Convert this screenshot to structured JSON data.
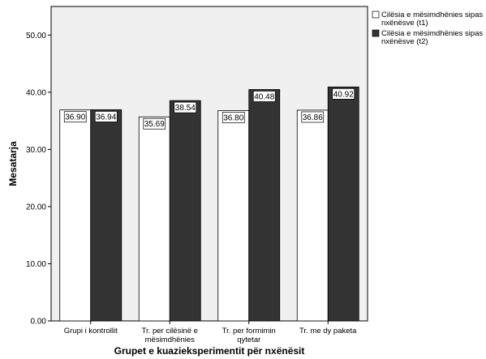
{
  "chart_data": {
    "type": "bar",
    "title": "",
    "xlabel": "Grupet e kuazieksperimentit për nxënësit",
    "ylabel": "Mesatarja",
    "ylim": [
      0,
      55
    ],
    "yticks": [
      "0.00",
      "10.00",
      "20.00",
      "30.00",
      "40.00",
      "50.00"
    ],
    "ytick_values": [
      0,
      10,
      20,
      30,
      40,
      50
    ],
    "grid": false,
    "legend_position": "top-right",
    "categories": [
      [
        "Grupi i kontrollit"
      ],
      [
        "Tr. per cilësinë e",
        "mësimdhënies"
      ],
      [
        "Tr. per formimin",
        "qytetar"
      ],
      [
        "Tr. me dy paketa"
      ]
    ],
    "series": [
      {
        "name": [
          "Cilësia e mësimdhënies sipas",
          "nxënësve (t1)"
        ],
        "values": [
          36.9,
          35.69,
          36.8,
          36.86
        ],
        "labels": [
          "36.90",
          "35.69",
          "36.80",
          "36.86"
        ],
        "color": "#ffffff"
      },
      {
        "name": [
          "Cilësia e mësimdhënies sipas",
          "nxënësve (t2)"
        ],
        "values": [
          36.94,
          38.54,
          40.48,
          40.92
        ],
        "labels": [
          "36.94",
          "38.54",
          "40.48",
          "40.92"
        ],
        "color": "#333333"
      }
    ],
    "plot_background": "#f0f0f0"
  }
}
